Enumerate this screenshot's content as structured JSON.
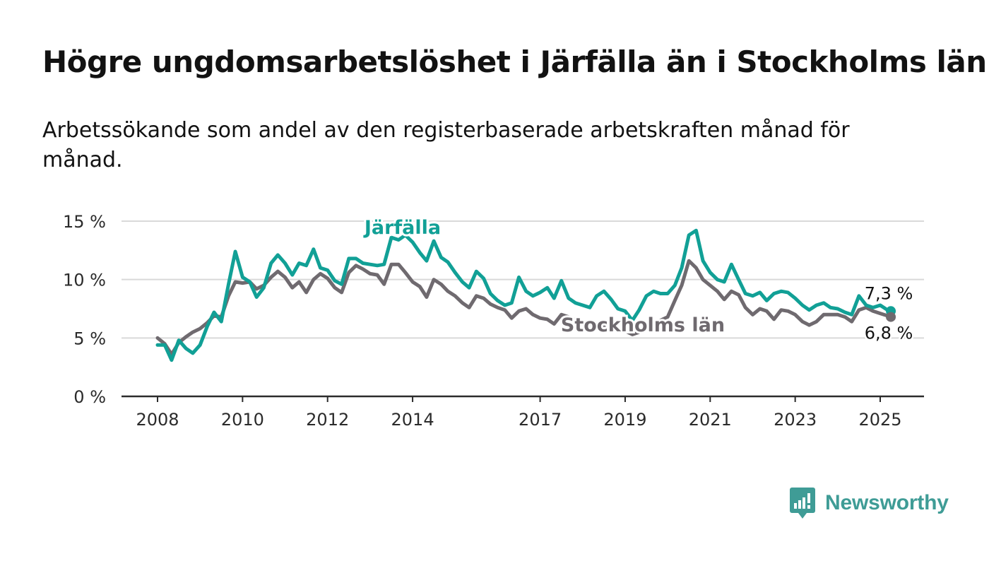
{
  "header": {
    "title": "Högre ungdomsarbetslöshet i Järfälla än i Stockholms län",
    "subtitle": "Arbetssökande som andel av den registerbaserade arbetskraften månad för månad."
  },
  "brand": {
    "name": "Newsworthy",
    "color": "#3f9c96"
  },
  "chart_data": {
    "type": "line",
    "title": "Högre ungdomsarbetslöshet i Järfälla än i Stockholms län",
    "subtitle": "Arbetssökande som andel av den registerbaserade arbetskraften månad för månad.",
    "xlabel": "",
    "ylabel": "",
    "xlim": [
      2007.25,
      2026.1
    ],
    "ylim": [
      0,
      15
    ],
    "y_ticks": [
      0,
      5,
      10,
      15
    ],
    "y_tick_labels": [
      "0 %",
      "5 %",
      "10 %",
      "15 %"
    ],
    "x_ticks": [
      2008,
      2010,
      2012,
      2014,
      2017,
      2019,
      2021,
      2023,
      2025
    ],
    "x_tick_labels": [
      "2008",
      "2010",
      "2012",
      "2014",
      "2017",
      "2019",
      "2021",
      "2023",
      "2025"
    ],
    "grid": true,
    "legend": "direct labels",
    "series": [
      {
        "name": "Järfälla",
        "color": "#11a096",
        "end_label": "7,3 %",
        "points": [
          [
            2008.0,
            4.4
          ],
          [
            2008.17,
            4.4
          ],
          [
            2008.33,
            3.1
          ],
          [
            2008.5,
            4.8
          ],
          [
            2008.67,
            4.1
          ],
          [
            2008.83,
            3.7
          ],
          [
            2009.0,
            4.4
          ],
          [
            2009.17,
            6.0
          ],
          [
            2009.33,
            7.2
          ],
          [
            2009.5,
            6.4
          ],
          [
            2009.67,
            9.6
          ],
          [
            2009.83,
            12.4
          ],
          [
            2010.0,
            10.2
          ],
          [
            2010.17,
            9.8
          ],
          [
            2010.33,
            8.5
          ],
          [
            2010.5,
            9.3
          ],
          [
            2010.67,
            11.4
          ],
          [
            2010.83,
            12.1
          ],
          [
            2011.0,
            11.4
          ],
          [
            2011.17,
            10.4
          ],
          [
            2011.33,
            11.4
          ],
          [
            2011.5,
            11.2
          ],
          [
            2011.67,
            12.6
          ],
          [
            2011.83,
            11.0
          ],
          [
            2012.0,
            10.8
          ],
          [
            2012.17,
            9.9
          ],
          [
            2012.33,
            9.6
          ],
          [
            2012.5,
            11.8
          ],
          [
            2012.67,
            11.8
          ],
          [
            2012.83,
            11.4
          ],
          [
            2013.0,
            11.3
          ],
          [
            2013.17,
            11.2
          ],
          [
            2013.33,
            11.3
          ],
          [
            2013.5,
            13.6
          ],
          [
            2013.67,
            13.4
          ],
          [
            2013.83,
            13.8
          ],
          [
            2014.0,
            13.2
          ],
          [
            2014.17,
            12.3
          ],
          [
            2014.33,
            11.6
          ],
          [
            2014.5,
            13.3
          ],
          [
            2014.67,
            11.9
          ],
          [
            2014.83,
            11.5
          ],
          [
            2015.0,
            10.6
          ],
          [
            2015.17,
            9.8
          ],
          [
            2015.33,
            9.3
          ],
          [
            2015.5,
            10.7
          ],
          [
            2015.67,
            10.1
          ],
          [
            2015.83,
            8.8
          ],
          [
            2016.0,
            8.2
          ],
          [
            2016.17,
            7.8
          ],
          [
            2016.33,
            8.0
          ],
          [
            2016.5,
            10.2
          ],
          [
            2016.67,
            9.0
          ],
          [
            2016.83,
            8.6
          ],
          [
            2017.0,
            8.9
          ],
          [
            2017.17,
            9.3
          ],
          [
            2017.33,
            8.4
          ],
          [
            2017.5,
            9.9
          ],
          [
            2017.67,
            8.4
          ],
          [
            2017.83,
            8.0
          ],
          [
            2018.0,
            7.8
          ],
          [
            2018.17,
            7.6
          ],
          [
            2018.33,
            8.6
          ],
          [
            2018.5,
            9.0
          ],
          [
            2018.67,
            8.3
          ],
          [
            2018.83,
            7.5
          ],
          [
            2019.0,
            7.3
          ],
          [
            2019.17,
            6.5
          ],
          [
            2019.33,
            7.4
          ],
          [
            2019.5,
            8.6
          ],
          [
            2019.67,
            9.0
          ],
          [
            2019.83,
            8.8
          ],
          [
            2020.0,
            8.8
          ],
          [
            2020.17,
            9.5
          ],
          [
            2020.33,
            11.0
          ],
          [
            2020.5,
            13.8
          ],
          [
            2020.67,
            14.2
          ],
          [
            2020.83,
            11.6
          ],
          [
            2021.0,
            10.6
          ],
          [
            2021.17,
            10.0
          ],
          [
            2021.33,
            9.8
          ],
          [
            2021.5,
            11.3
          ],
          [
            2021.67,
            10.0
          ],
          [
            2021.83,
            8.8
          ],
          [
            2022.0,
            8.6
          ],
          [
            2022.17,
            8.9
          ],
          [
            2022.33,
            8.2
          ],
          [
            2022.5,
            8.8
          ],
          [
            2022.67,
            9.0
          ],
          [
            2022.83,
            8.9
          ],
          [
            2023.0,
            8.4
          ],
          [
            2023.17,
            7.8
          ],
          [
            2023.33,
            7.4
          ],
          [
            2023.5,
            7.8
          ],
          [
            2023.67,
            8.0
          ],
          [
            2023.83,
            7.6
          ],
          [
            2024.0,
            7.5
          ],
          [
            2024.17,
            7.2
          ],
          [
            2024.33,
            7.0
          ],
          [
            2024.5,
            8.6
          ],
          [
            2024.67,
            7.8
          ],
          [
            2024.83,
            7.6
          ],
          [
            2025.0,
            7.8
          ],
          [
            2025.17,
            7.4
          ],
          [
            2025.25,
            7.3
          ]
        ]
      },
      {
        "name": "Stockholms län",
        "color": "#6f6a6f",
        "end_label": "6,8 %",
        "points": [
          [
            2008.0,
            5.0
          ],
          [
            2008.17,
            4.5
          ],
          [
            2008.33,
            3.6
          ],
          [
            2008.5,
            4.6
          ],
          [
            2008.67,
            5.1
          ],
          [
            2008.83,
            5.5
          ],
          [
            2009.0,
            5.8
          ],
          [
            2009.17,
            6.3
          ],
          [
            2009.33,
            6.9
          ],
          [
            2009.5,
            6.8
          ],
          [
            2009.67,
            8.6
          ],
          [
            2009.83,
            9.8
          ],
          [
            2010.0,
            9.7
          ],
          [
            2010.17,
            9.8
          ],
          [
            2010.33,
            9.2
          ],
          [
            2010.5,
            9.5
          ],
          [
            2010.67,
            10.2
          ],
          [
            2010.83,
            10.7
          ],
          [
            2011.0,
            10.2
          ],
          [
            2011.17,
            9.3
          ],
          [
            2011.33,
            9.8
          ],
          [
            2011.5,
            8.9
          ],
          [
            2011.67,
            10.0
          ],
          [
            2011.83,
            10.5
          ],
          [
            2012.0,
            10.1
          ],
          [
            2012.17,
            9.3
          ],
          [
            2012.33,
            8.9
          ],
          [
            2012.5,
            10.6
          ],
          [
            2012.67,
            11.2
          ],
          [
            2012.83,
            10.9
          ],
          [
            2013.0,
            10.5
          ],
          [
            2013.17,
            10.4
          ],
          [
            2013.33,
            9.6
          ],
          [
            2013.5,
            11.3
          ],
          [
            2013.67,
            11.3
          ],
          [
            2013.83,
            10.6
          ],
          [
            2014.0,
            9.8
          ],
          [
            2014.17,
            9.4
          ],
          [
            2014.33,
            8.5
          ],
          [
            2014.5,
            10.0
          ],
          [
            2014.67,
            9.6
          ],
          [
            2014.83,
            9.0
          ],
          [
            2015.0,
            8.6
          ],
          [
            2015.17,
            8.0
          ],
          [
            2015.33,
            7.6
          ],
          [
            2015.5,
            8.6
          ],
          [
            2015.67,
            8.4
          ],
          [
            2015.83,
            7.9
          ],
          [
            2016.0,
            7.6
          ],
          [
            2016.17,
            7.4
          ],
          [
            2016.33,
            6.7
          ],
          [
            2016.5,
            7.3
          ],
          [
            2016.67,
            7.5
          ],
          [
            2016.83,
            7.0
          ],
          [
            2017.0,
            6.7
          ],
          [
            2017.17,
            6.6
          ],
          [
            2017.33,
            6.2
          ],
          [
            2017.5,
            7.0
          ],
          [
            2017.67,
            6.8
          ],
          [
            2017.83,
            6.6
          ],
          [
            2018.0,
            6.3
          ],
          [
            2018.17,
            6.2
          ],
          [
            2018.33,
            6.0
          ],
          [
            2018.5,
            6.1
          ],
          [
            2018.67,
            6.1
          ],
          [
            2018.83,
            5.8
          ],
          [
            2019.0,
            5.6
          ],
          [
            2019.17,
            5.3
          ],
          [
            2019.33,
            5.5
          ],
          [
            2019.5,
            6.0
          ],
          [
            2019.67,
            6.3
          ],
          [
            2019.83,
            6.5
          ],
          [
            2020.0,
            6.8
          ],
          [
            2020.17,
            8.2
          ],
          [
            2020.33,
            9.5
          ],
          [
            2020.5,
            11.6
          ],
          [
            2020.67,
            11.0
          ],
          [
            2020.83,
            10.0
          ],
          [
            2021.0,
            9.5
          ],
          [
            2021.17,
            9.0
          ],
          [
            2021.33,
            8.3
          ],
          [
            2021.5,
            9.0
          ],
          [
            2021.67,
            8.7
          ],
          [
            2021.83,
            7.6
          ],
          [
            2022.0,
            7.0
          ],
          [
            2022.17,
            7.5
          ],
          [
            2022.33,
            7.3
          ],
          [
            2022.5,
            6.6
          ],
          [
            2022.67,
            7.4
          ],
          [
            2022.83,
            7.3
          ],
          [
            2023.0,
            7.0
          ],
          [
            2023.17,
            6.4
          ],
          [
            2023.33,
            6.1
          ],
          [
            2023.5,
            6.4
          ],
          [
            2023.67,
            7.0
          ],
          [
            2023.83,
            7.0
          ],
          [
            2024.0,
            7.0
          ],
          [
            2024.17,
            6.8
          ],
          [
            2024.33,
            6.4
          ],
          [
            2024.5,
            7.4
          ],
          [
            2024.67,
            7.6
          ],
          [
            2024.83,
            7.3
          ],
          [
            2025.0,
            7.1
          ],
          [
            2025.17,
            6.9
          ],
          [
            2025.25,
            6.8
          ]
        ],
        "annotation": "Stockholms län"
      }
    ],
    "series_labels": {
      "jarfalla": "Järfälla",
      "stockholm": "Stockholms län"
    }
  }
}
